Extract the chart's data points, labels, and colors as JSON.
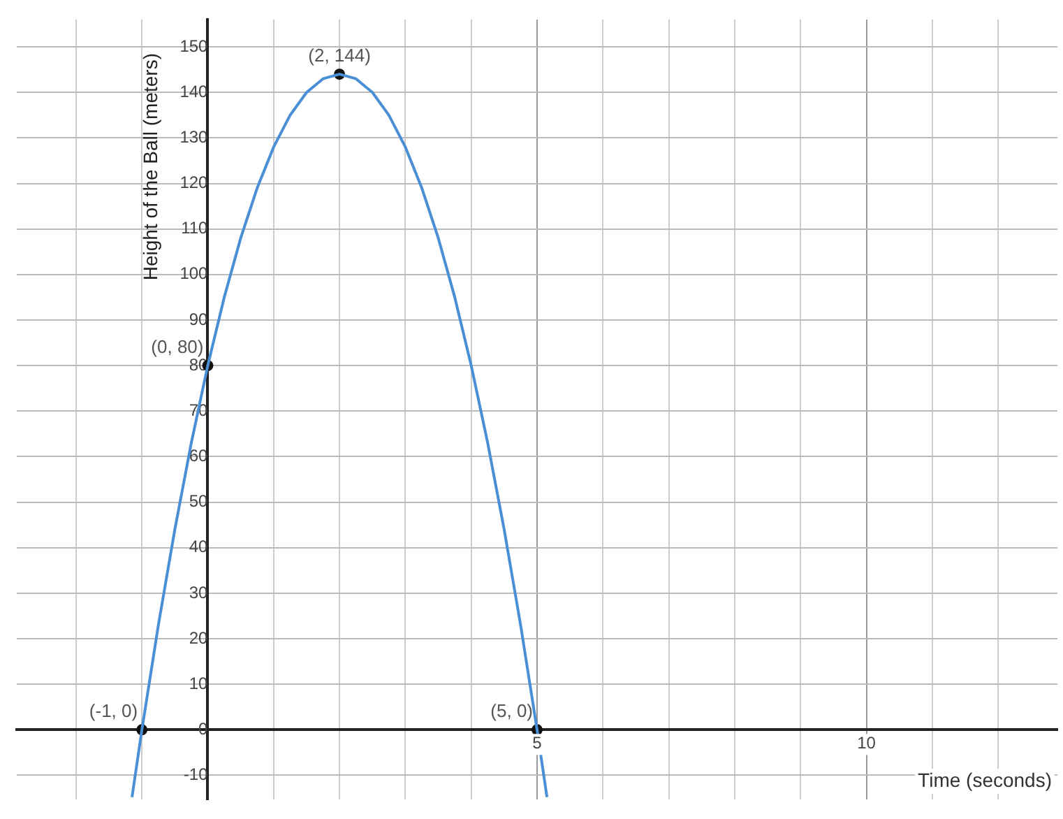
{
  "chart_data": {
    "type": "line",
    "xlabel": "Time (seconds)",
    "ylabel": "Height of the Ball (meters)",
    "xlim": [
      -2.9,
      12.9
    ],
    "ylim": [
      -15.3,
      156
    ],
    "xticks": [
      {
        "value": -2,
        "label": null
      },
      {
        "value": -1,
        "label": null
      },
      {
        "value": 0,
        "label": null
      },
      {
        "value": 1,
        "label": null
      },
      {
        "value": 2,
        "label": null
      },
      {
        "value": 3,
        "label": null
      },
      {
        "value": 4,
        "label": null
      },
      5,
      {
        "value": 6,
        "label": null
      },
      {
        "value": 7,
        "label": null
      },
      {
        "value": 8,
        "label": null
      },
      {
        "value": 9,
        "label": null
      },
      10,
      {
        "value": 11,
        "label": null
      },
      {
        "value": 12,
        "label": null
      }
    ],
    "yticks": [
      -10,
      0,
      10,
      20,
      30,
      40,
      50,
      60,
      70,
      80,
      90,
      100,
      110,
      120,
      130,
      140,
      150
    ],
    "grid": true,
    "legend": false,
    "series": [
      {
        "type": "line",
        "color": "#4a8fd6",
        "marker": "none",
        "x": [
          -1.15,
          -1,
          -0.75,
          -0.5,
          -0.25,
          0,
          0.25,
          0.5,
          0.75,
          1,
          1.25,
          1.5,
          1.75,
          2,
          2.25,
          2.5,
          2.75,
          3,
          3.25,
          3.5,
          3.75,
          4,
          4.25,
          4.5,
          4.75,
          5,
          5.15
        ],
        "values": [
          -14.8,
          0,
          23,
          44,
          63,
          80,
          95,
          108,
          119,
          128,
          135,
          140,
          143,
          144,
          143,
          140,
          135,
          128,
          119,
          108,
          95,
          80,
          63,
          44,
          23,
          0,
          -14.8
        ]
      },
      {
        "type": "scatter",
        "color": "#111111",
        "marker": "circle",
        "x": [
          -1,
          0,
          2,
          5
        ],
        "values": [
          0,
          80,
          144,
          0
        ]
      }
    ],
    "annotations": [
      {
        "text": "(-1, 0)",
        "x": -1,
        "y": 0
      },
      {
        "text": "(0, 80)",
        "x": 0,
        "y": 80
      },
      {
        "text": "(2, 144)",
        "x": 2,
        "y": 144
      },
      {
        "text": "(5, 0)",
        "x": 5,
        "y": 0
      }
    ]
  }
}
